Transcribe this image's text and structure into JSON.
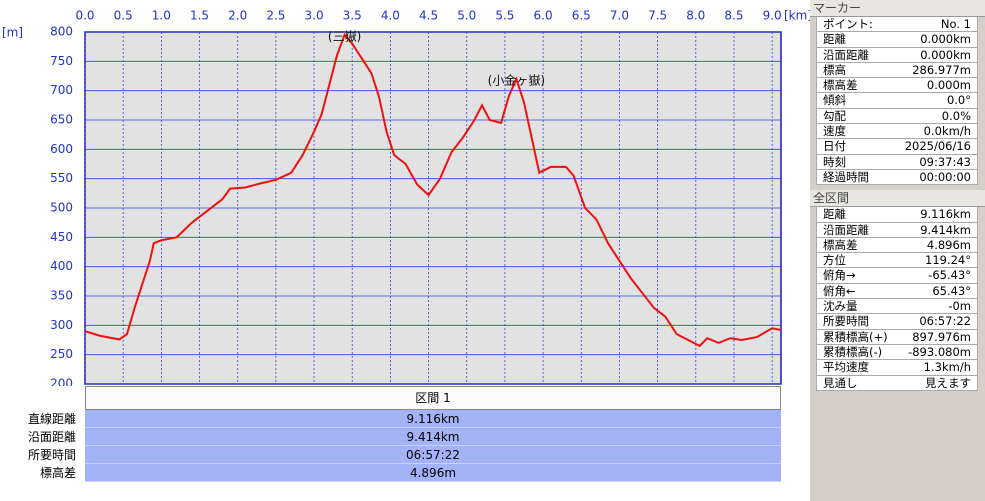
{
  "chart_data": {
    "type": "line",
    "x_unit": "[km]",
    "y_unit": "[m]",
    "x": [
      0.0,
      0.2,
      0.45,
      0.55,
      0.65,
      0.75,
      0.85,
      0.9,
      1.0,
      1.2,
      1.4,
      1.6,
      1.8,
      1.9,
      2.1,
      2.3,
      2.5,
      2.7,
      2.85,
      3.0,
      3.1,
      3.2,
      3.3,
      3.4,
      3.5,
      3.6,
      3.75,
      3.85,
      3.95,
      4.05,
      4.2,
      4.35,
      4.5,
      4.65,
      4.8,
      4.95,
      5.1,
      5.2,
      5.3,
      5.45,
      5.55,
      5.65,
      5.75,
      5.85,
      5.95,
      6.1,
      6.3,
      6.4,
      6.55,
      6.7,
      6.85,
      7.0,
      7.15,
      7.3,
      7.45,
      7.6,
      7.75,
      7.9,
      8.05,
      8.15,
      8.3,
      8.45,
      8.6,
      8.8,
      9.0,
      9.116
    ],
    "values": [
      290,
      282,
      276,
      285,
      330,
      370,
      410,
      440,
      445,
      450,
      475,
      495,
      515,
      533,
      535,
      542,
      548,
      560,
      590,
      630,
      660,
      710,
      760,
      795,
      780,
      760,
      730,
      690,
      630,
      590,
      575,
      540,
      522,
      550,
      595,
      620,
      650,
      675,
      650,
      645,
      690,
      720,
      680,
      620,
      560,
      570,
      570,
      555,
      500,
      480,
      440,
      410,
      380,
      355,
      330,
      315,
      285,
      275,
      265,
      278,
      270,
      278,
      275,
      280,
      295,
      292
    ],
    "color": "#ee1111",
    "xlim": [
      0,
      9.116
    ],
    "ylim": [
      200,
      800
    ],
    "xticks": [
      {
        "value": 0,
        "label": "0.0"
      },
      0.5,
      {
        "value": 1,
        "label": "1.0"
      },
      1.5,
      {
        "value": 2,
        "label": "2.0"
      },
      2.5,
      {
        "value": 3,
        "label": "3.0"
      },
      3.5,
      {
        "value": 4,
        "label": "4.0"
      },
      4.5,
      {
        "value": 5,
        "label": "5.0"
      },
      5.5,
      {
        "value": 6,
        "label": "6.0"
      },
      6.5,
      {
        "value": 7,
        "label": "7.0"
      },
      7.5,
      {
        "value": 8,
        "label": "8.0"
      },
      8.5,
      {
        "value": 9,
        "label": "9.0"
      }
    ],
    "yticks": [
      200,
      250,
      300,
      350,
      400,
      450,
      500,
      550,
      600,
      650,
      700,
      750,
      800
    ],
    "grid": true,
    "annotations": [
      {
        "text": "(三嶽)",
        "x": 3.4
      },
      {
        "text": "(小金ヶ嶽)",
        "x": 5.65
      }
    ]
  },
  "section_table": {
    "header": "区間 1",
    "rows": [
      [
        "直線距離",
        "9.116km"
      ],
      [
        "沿面距離",
        "9.414km"
      ],
      [
        "所要時間",
        "06:57:22"
      ],
      [
        "標高差",
        "4.896m"
      ]
    ]
  },
  "marker": {
    "title": "マーカー",
    "rows": [
      [
        "ポイント:",
        "No. 1"
      ],
      [
        "距離",
        "0.000km"
      ],
      [
        "沿面距離",
        "0.000km"
      ],
      [
        "標高",
        "286.977m"
      ],
      [
        "標高差",
        "0.000m"
      ],
      [
        "傾斜",
        "0.0°"
      ],
      [
        "勾配",
        "0.0%"
      ],
      [
        "速度",
        "0.0km/h"
      ],
      [
        "日付",
        "2025/06/16"
      ],
      [
        "時刻",
        "09:37:43"
      ],
      [
        "経過時間",
        "00:00:00"
      ]
    ]
  },
  "total": {
    "title": "全区間",
    "rows": [
      [
        "距離",
        "9.116km"
      ],
      [
        "沿面距離",
        "9.414km"
      ],
      [
        "標高差",
        "4.896m"
      ],
      [
        "方位",
        "119.24°"
      ],
      [
        "俯角→",
        "-65.43°"
      ],
      [
        "俯角←",
        "65.43°"
      ],
      [
        "沈み量",
        "-0m"
      ],
      [
        "所要時間",
        "06:57:22"
      ],
      [
        "累積標高(+)",
        "897.976m"
      ],
      [
        "累積標高(-)",
        "-893.080m"
      ],
      [
        "平均速度",
        "1.3km/h"
      ],
      [
        "見通し",
        "見えます"
      ]
    ]
  }
}
